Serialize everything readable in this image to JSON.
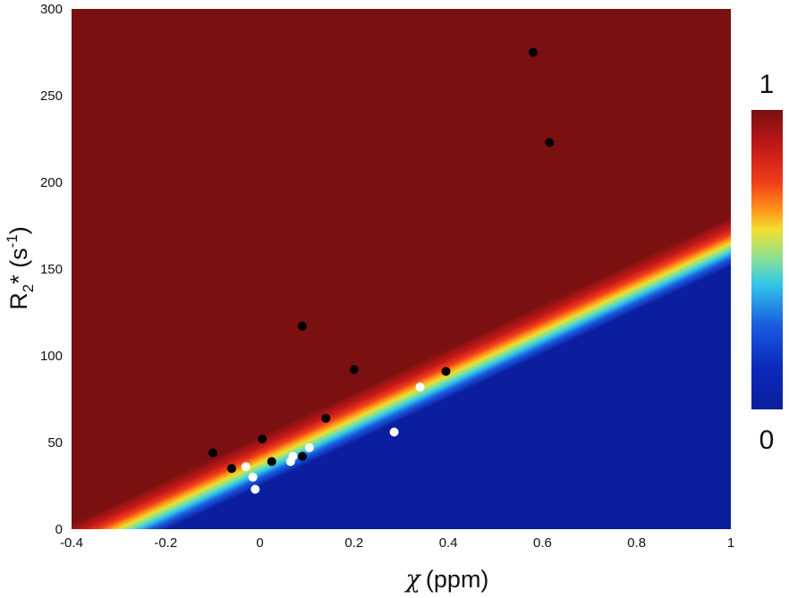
{
  "chart_data": {
    "type": "scatter",
    "title": "",
    "xlabel": {
      "symbol": "χ",
      "unit": "(ppm)"
    },
    "ylabel": {
      "main": "R",
      "sub": "2",
      "star": "*",
      "unit_open": " (s",
      "sup": "-1",
      "unit_close": ")"
    },
    "xlim": [
      -0.4,
      1
    ],
    "ylim": [
      0,
      300
    ],
    "xticks": [
      -0.4,
      -0.2,
      0,
      0.2,
      0.4,
      0.6,
      0.8,
      1
    ],
    "xtick_labels": [
      "-0.4",
      "-0.2",
      "0",
      "0.2",
      "0.4",
      "0.6",
      "0.8",
      "1"
    ],
    "yticks": [
      0,
      50,
      100,
      150,
      200,
      250,
      300
    ],
    "ytick_labels": [
      "0",
      "50",
      "100",
      "150",
      "200",
      "250",
      "300"
    ],
    "background": {
      "type": "probability-map",
      "boundary_line": {
        "x": [
          -0.31,
          1.0
        ],
        "y": [
          0,
          166
        ]
      },
      "colors": {
        "high": "#7a1010",
        "low": "#0a1e9e"
      }
    },
    "colorbar": {
      "min_label": "0",
      "max_label": "1",
      "colormap": "jet",
      "placement": "right"
    },
    "series": [
      {
        "color": "#000000",
        "x": [
          0.58,
          0.615,
          0.09,
          0.2,
          0.395,
          0.14,
          -0.1,
          0.005,
          -0.06,
          0.025,
          0.09
        ],
        "y": [
          275,
          223,
          117,
          92,
          91,
          64,
          44,
          52,
          35,
          39,
          42
        ]
      },
      {
        "color": "#ffffff",
        "x": [
          0.34,
          0.285,
          0.105,
          0.07,
          0.065,
          -0.03,
          -0.015,
          -0.01
        ],
        "y": [
          82,
          56,
          47,
          42,
          39,
          36,
          30,
          23
        ]
      }
    ]
  }
}
